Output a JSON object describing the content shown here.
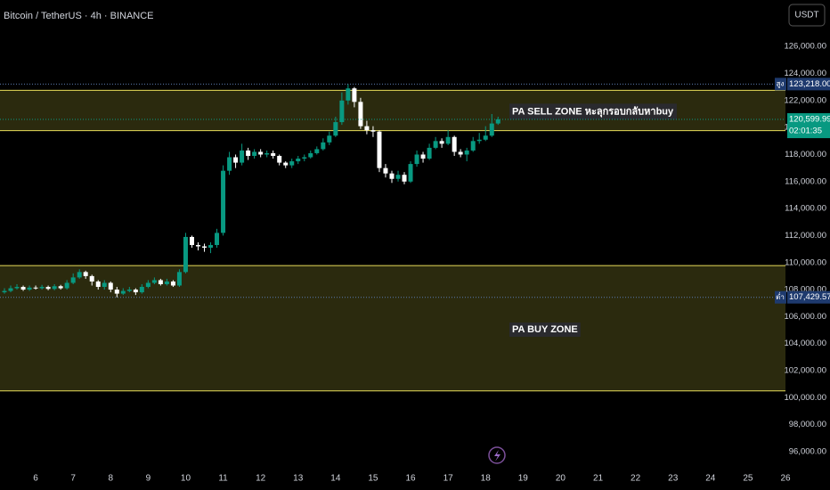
{
  "header": {
    "symbol": "Bitcoin / TetherUS · 4h · BINANCE",
    "currency": "USDT"
  },
  "chart_data": {
    "type": "candlestick",
    "up_color": "#089981",
    "down_color": "#ffffff",
    "x": [
      5.167,
      5.333,
      5.5,
      5.667,
      5.833,
      6,
      6.167,
      6.333,
      6.5,
      6.667,
      6.833,
      7,
      7.167,
      7.333,
      7.5,
      7.667,
      7.833,
      8,
      8.167,
      8.333,
      8.5,
      8.667,
      8.833,
      9,
      9.167,
      9.333,
      9.5,
      9.667,
      9.833,
      10,
      10.167,
      10.333,
      10.5,
      10.667,
      10.833,
      11,
      11.167,
      11.333,
      11.5,
      11.667,
      11.833,
      12,
      12.167,
      12.333,
      12.5,
      12.667,
      12.833,
      13,
      13.167,
      13.333,
      13.5,
      13.667,
      13.833,
      14,
      14.167,
      14.333,
      14.5,
      14.667,
      14.833,
      15,
      15.167,
      15.333,
      15.5,
      15.667,
      15.833,
      16,
      16.167,
      16.333,
      16.5,
      16.667,
      16.833,
      17,
      17.167,
      17.333,
      17.5,
      17.667,
      17.833,
      18,
      18.167,
      18.333
    ],
    "open": [
      107800,
      107900,
      108100,
      108200,
      108000,
      108150,
      108100,
      108200,
      108050,
      108250,
      108100,
      108500,
      108900,
      109300,
      109000,
      108600,
      108200,
      108500,
      108000,
      107700,
      107900,
      108000,
      107800,
      108200,
      108500,
      108700,
      108400,
      108600,
      108300,
      109300,
      111900,
      111300,
      111200,
      111100,
      111300,
      112200,
      116800,
      117800,
      117400,
      118300,
      117900,
      118200,
      118000,
      118100,
      117900,
      117400,
      117200,
      117500,
      117700,
      117800,
      118100,
      118400,
      118900,
      119400,
      120400,
      122000,
      122900,
      121900,
      120100,
      119800,
      119700,
      117000,
      116600,
      116200,
      116500,
      116000,
      117300,
      118000,
      117700,
      118500,
      119000,
      118800,
      119300,
      118200,
      118000,
      118300,
      119000,
      119100,
      119400,
      120300
    ],
    "high": [
      108100,
      108300,
      108400,
      108300,
      108300,
      108300,
      108350,
      108300,
      108400,
      108350,
      108700,
      109200,
      109500,
      109400,
      109100,
      108700,
      108700,
      108600,
      108200,
      108100,
      108200,
      108100,
      108400,
      108700,
      108900,
      108800,
      108800,
      108700,
      109500,
      112200,
      112000,
      111500,
      111400,
      111500,
      112500,
      117200,
      118200,
      118000,
      118800,
      118500,
      118400,
      118400,
      118300,
      118300,
      118000,
      117500,
      117700,
      117900,
      118000,
      118300,
      118600,
      119200,
      119700,
      120800,
      122600,
      123218,
      123000,
      122200,
      120500,
      120100,
      119800,
      117300,
      116800,
      116800,
      116700,
      117500,
      118300,
      118200,
      118800,
      119300,
      119200,
      119800,
      119400,
      118400,
      118500,
      119300,
      119600,
      120100,
      121000,
      120800
    ],
    "low": [
      107700,
      107800,
      108000,
      107900,
      107900,
      108000,
      108000,
      107950,
      107950,
      108000,
      108000,
      108400,
      108800,
      108800,
      108300,
      108000,
      108000,
      107800,
      107429.57,
      107600,
      107800,
      107600,
      107700,
      108100,
      108400,
      108300,
      108300,
      108200,
      108200,
      109200,
      111100,
      110900,
      110800,
      110700,
      111100,
      112000,
      116500,
      117000,
      117200,
      117600,
      117700,
      117800,
      117800,
      117700,
      117200,
      117000,
      117000,
      117300,
      117500,
      117700,
      118000,
      118300,
      118700,
      119300,
      120200,
      121700,
      121500,
      119900,
      119500,
      119300,
      116700,
      116300,
      115900,
      116000,
      115800,
      115900,
      117100,
      117400,
      117600,
      118400,
      118500,
      118700,
      117900,
      117800,
      117500,
      118200,
      118800,
      119000,
      119300,
      120200
    ],
    "close": [
      107900,
      108100,
      108200,
      108000,
      108150,
      108100,
      108200,
      108050,
      108250,
      108100,
      108500,
      108900,
      109300,
      109000,
      108600,
      108200,
      108500,
      108000,
      107700,
      107900,
      108000,
      107800,
      108200,
      108500,
      108700,
      108400,
      108600,
      108300,
      109300,
      111900,
      111300,
      111200,
      111100,
      111300,
      112200,
      116800,
      117800,
      117400,
      118300,
      117900,
      118200,
      118000,
      118100,
      117900,
      117400,
      117200,
      117500,
      117700,
      117800,
      118100,
      118400,
      118900,
      119400,
      120400,
      122000,
      122900,
      121900,
      120100,
      119800,
      119700,
      117000,
      116600,
      116200,
      116500,
      116000,
      117300,
      118000,
      117700,
      118500,
      119000,
      118800,
      119300,
      118200,
      118000,
      118300,
      119000,
      119100,
      119400,
      120300,
      120599.99
    ],
    "xlim": [
      5.048,
      26
    ],
    "xticks": [
      6,
      7,
      8,
      9,
      10,
      11,
      12,
      13,
      14,
      15,
      16,
      17,
      18,
      19,
      20,
      21,
      22,
      23,
      24,
      25,
      26
    ],
    "ylim": [
      95007,
      129444
    ],
    "yticks": [
      {
        "value": 96000,
        "label": "96,000.00"
      },
      {
        "value": 98000,
        "label": "98,000.00"
      },
      {
        "value": 100000,
        "label": "100,000.00"
      },
      {
        "value": 102000,
        "label": "102,000.00"
      },
      {
        "value": 104000,
        "label": "104,000.00"
      },
      {
        "value": 106000,
        "label": "106,000.00"
      },
      {
        "value": 108000,
        "label": "108,000.00"
      },
      {
        "value": 110000,
        "label": "110,000.00"
      },
      {
        "value": 112000,
        "label": "112,000.00"
      },
      {
        "value": 114000,
        "label": "114,000.00"
      },
      {
        "value": 116000,
        "label": "116,000.00"
      },
      {
        "value": 118000,
        "label": "118,000.00"
      },
      {
        "value": 120000,
        "label": "120,000.00"
      },
      {
        "value": 122000,
        "label": "122,000.00"
      },
      {
        "value": 124000,
        "label": "124,000.00"
      },
      {
        "value": 126000,
        "label": "126,000.00"
      }
    ],
    "zones": [
      {
        "name": "PA SELL ZONE หะลุกรอบกลับหาbuy",
        "low": 119775,
        "high": 122755
      },
      {
        "name": "PA BUY ZONE",
        "low": 100503,
        "high": 109775
      }
    ],
    "zone_fill": "#2b2a0e",
    "zone_border": "#e8dc5a",
    "price_tags": [
      {
        "name": "สูง",
        "value": 123218,
        "value_label": "123,218.00",
        "color": "#1e3a6e"
      },
      {
        "value": 120599.99,
        "value_label": "120,599.99",
        "countdown": "02:01:35",
        "color": "#089981"
      },
      {
        "name": "ต่ำ",
        "value": 107429.57,
        "value_label": "107,429.57",
        "color": "#1e3a6e"
      }
    ]
  }
}
